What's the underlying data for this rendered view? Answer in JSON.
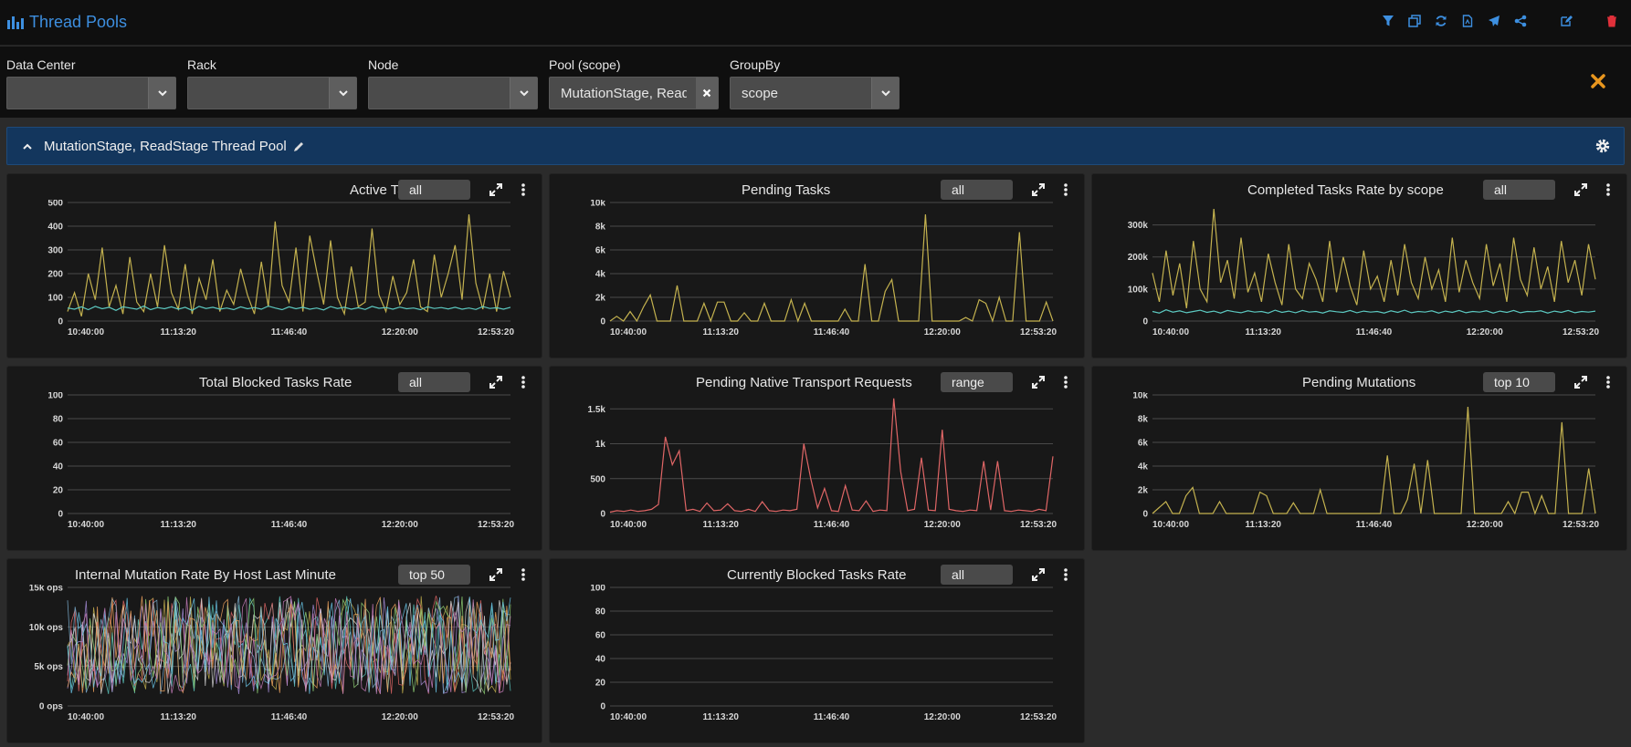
{
  "header": {
    "title": "Thread Pools"
  },
  "toolbar": {
    "icons": [
      "filter-icon",
      "copy-icon",
      "refresh-icon",
      "pdf-icon",
      "send-icon",
      "share-icon",
      "edit-icon",
      "delete-icon"
    ]
  },
  "filters": {
    "data_center": {
      "label": "Data Center",
      "value": ""
    },
    "rack": {
      "label": "Rack",
      "value": ""
    },
    "node": {
      "label": "Node",
      "value": ""
    },
    "pool": {
      "label": "Pool (scope)",
      "value": "MutationStage, ReadStage"
    },
    "groupby": {
      "label": "GroupBy",
      "value": "scope"
    }
  },
  "row": {
    "title": "MutationStage, ReadStage Thread Pool"
  },
  "colors": {
    "accent": "#3d8fe0",
    "yellow": "#c4b24f",
    "teal": "#5cc8c0",
    "red": "#e06666",
    "orange": "#e8961e",
    "row_bg": "#13365d"
  },
  "panels": [
    {
      "title": "Active Tasks",
      "pill": "all"
    },
    {
      "title": "Pending Tasks",
      "pill": "all"
    },
    {
      "title": "Completed Tasks Rate by scope",
      "pill": "all"
    },
    {
      "title": "Total Blocked Tasks Rate",
      "pill": "all"
    },
    {
      "title": "Pending Native Transport Requests",
      "pill": "range"
    },
    {
      "title": "Pending Mutations",
      "pill": "top 10"
    },
    {
      "title": "Internal Mutation Rate By Host Last Minute",
      "pill": "top 50"
    },
    {
      "title": "Currently Blocked Tasks Rate",
      "pill": "all"
    }
  ],
  "chart_data": [
    {
      "type": "line",
      "title": "Active Tasks",
      "x_ticks": [
        "10:40:00",
        "11:13:20",
        "11:46:40",
        "12:20:00",
        "12:53:20"
      ],
      "y_ticks": [
        "0",
        "100",
        "200",
        "300",
        "400",
        "500"
      ],
      "ylim": [
        0,
        500
      ],
      "series": [
        {
          "color": "#c4b24f",
          "values": [
            40,
            120,
            20,
            200,
            90,
            310,
            60,
            150,
            30,
            270,
            80,
            40,
            200,
            60,
            320,
            120,
            50,
            240,
            30,
            180,
            90,
            260,
            40,
            130,
            70,
            220,
            110,
            30,
            250,
            60,
            420,
            150,
            80,
            310,
            40,
            360,
            210,
            70,
            340,
            100,
            30,
            230,
            60,
            80,
            390,
            110,
            40,
            190,
            70,
            120,
            260,
            60,
            40,
            280,
            100,
            200,
            320,
            90,
            450,
            160,
            50,
            200,
            40,
            210,
            100
          ]
        },
        {
          "color": "#5cc8c0",
          "values": [
            55,
            50,
            60,
            48,
            62,
            52,
            58,
            45,
            60,
            55,
            50,
            63,
            48,
            57,
            52,
            60,
            50,
            58,
            45,
            62,
            53,
            58,
            50,
            55,
            48,
            60,
            52,
            57,
            50,
            63,
            55,
            48,
            60,
            52,
            58,
            50,
            55,
            47,
            61,
            53,
            58,
            50,
            56,
            49,
            62,
            54,
            57,
            50,
            59,
            52,
            55,
            48,
            60,
            53,
            57,
            51,
            58,
            50,
            55,
            49,
            61,
            53,
            56,
            50,
            58
          ]
        }
      ]
    },
    {
      "type": "line",
      "title": "Pending Tasks",
      "x_ticks": [
        "10:40:00",
        "11:13:20",
        "11:46:40",
        "12:20:00",
        "12:53:20"
      ],
      "y_ticks": [
        "0",
        "2k",
        "4k",
        "6k",
        "8k",
        "10k"
      ],
      "ylim": [
        0,
        10000
      ],
      "series": [
        {
          "color": "#c4b24f",
          "values": [
            0,
            400,
            0,
            800,
            0,
            1200,
            2200,
            0,
            0,
            0,
            3000,
            0,
            0,
            0,
            1500,
            0,
            1600,
            1600,
            0,
            0,
            700,
            0,
            0,
            1500,
            0,
            0,
            0,
            1800,
            0,
            1500,
            0,
            0,
            0,
            0,
            0,
            1000,
            0,
            0,
            4800,
            0,
            0,
            2500,
            3500,
            0,
            0,
            0,
            0,
            9000,
            0,
            0,
            0,
            0,
            0,
            300,
            0,
            1800,
            1500,
            0,
            2000,
            0,
            0,
            7500,
            0,
            0,
            0,
            1600,
            0
          ]
        }
      ]
    },
    {
      "type": "line",
      "title": "Completed Tasks Rate by scope",
      "x_ticks": [
        "10:40:00",
        "11:13:20",
        "11:46:40",
        "12:20:00",
        "12:53:20"
      ],
      "y_ticks": [
        "0",
        "100k",
        "200k",
        "300k"
      ],
      "ylim": [
        0,
        370000
      ],
      "series": [
        {
          "color": "#c4b24f",
          "values": [
            150000,
            60000,
            220000,
            80000,
            180000,
            40000,
            250000,
            100000,
            60000,
            350000,
            120000,
            190000,
            70000,
            260000,
            90000,
            150000,
            60000,
            210000,
            120000,
            50000,
            240000,
            100000,
            70000,
            180000,
            130000,
            60000,
            250000,
            90000,
            200000,
            110000,
            50000,
            220000,
            100000,
            140000,
            60000,
            190000,
            80000,
            240000,
            120000,
            70000,
            200000,
            100000,
            160000,
            60000,
            260000,
            90000,
            190000,
            120000,
            70000,
            240000,
            110000,
            180000,
            60000,
            260000,
            130000,
            80000,
            230000,
            100000,
            170000,
            60000,
            250000,
            120000,
            190000,
            80000,
            240000,
            130000
          ]
        },
        {
          "color": "#5cc8c0",
          "values": [
            30000,
            25000,
            35000,
            28000,
            32000,
            26000,
            30000,
            34000,
            27000,
            31000,
            25000,
            33000,
            29000,
            26000,
            32000,
            28000,
            30000,
            25000,
            34000,
            27000,
            31000,
            26000,
            33000,
            28000,
            30000,
            25000,
            32000,
            29000,
            27000,
            33000,
            26000,
            31000,
            28000,
            30000,
            25000,
            32000,
            27000,
            34000,
            26000,
            30000,
            28000,
            32000,
            25000,
            31000,
            27000,
            33000,
            26000,
            30000,
            28000,
            32000,
            25000,
            31000,
            27000,
            33000,
            26000,
            30000,
            29000,
            32000,
            25000,
            31000,
            27000,
            33000,
            26000,
            30000,
            28000,
            31000
          ]
        }
      ]
    },
    {
      "type": "line",
      "title": "Total Blocked Tasks Rate",
      "x_ticks": [
        "10:40:00",
        "11:13:20",
        "11:46:40",
        "12:20:00",
        "12:53:20"
      ],
      "y_ticks": [
        "0",
        "20",
        "40",
        "60",
        "80",
        "100"
      ],
      "ylim": [
        0,
        100
      ],
      "series": []
    },
    {
      "type": "line",
      "title": "Pending Native Transport Requests",
      "x_ticks": [
        "10:40:00",
        "11:13:20",
        "11:46:40",
        "12:20:00",
        "12:53:20"
      ],
      "y_ticks": [
        "0",
        "500",
        "1k",
        "1.5k"
      ],
      "ylim": [
        0,
        1700
      ],
      "series": [
        {
          "color": "#e06666",
          "values": [
            20,
            40,
            30,
            50,
            30,
            40,
            60,
            130,
            1100,
            700,
            900,
            40,
            60,
            30,
            150,
            40,
            50,
            140,
            40,
            30,
            60,
            30,
            170,
            40,
            30,
            50,
            40,
            60,
            1000,
            500,
            80,
            360,
            40,
            30,
            400,
            50,
            40,
            180,
            30,
            50,
            40,
            1650,
            600,
            40,
            60,
            800,
            50,
            40,
            1200,
            60,
            40,
            30,
            50,
            40,
            750,
            50,
            750,
            40,
            30,
            50,
            40,
            30,
            60,
            40,
            820
          ]
        }
      ]
    },
    {
      "type": "line",
      "title": "Pending Mutations",
      "x_ticks": [
        "10:40:00",
        "11:13:20",
        "11:46:40",
        "12:20:00",
        "12:53:20"
      ],
      "y_ticks": [
        "0",
        "2k",
        "4k",
        "6k",
        "8k",
        "10k"
      ],
      "ylim": [
        0,
        10000
      ],
      "series": [
        {
          "color": "#c4b24f",
          "values": [
            0,
            500,
            1000,
            0,
            0,
            1500,
            2200,
            0,
            0,
            0,
            1000,
            0,
            0,
            0,
            0,
            0,
            1800,
            1500,
            0,
            0,
            0,
            900,
            0,
            0,
            0,
            2000,
            0,
            0,
            0,
            0,
            0,
            0,
            0,
            0,
            0,
            4900,
            0,
            0,
            1200,
            4200,
            0,
            4500,
            0,
            0,
            0,
            0,
            0,
            9000,
            0,
            0,
            0,
            0,
            0,
            1000,
            0,
            1800,
            1800,
            0,
            1500,
            0,
            0,
            7700,
            0,
            0,
            0,
            3800,
            0
          ]
        }
      ]
    },
    {
      "type": "line",
      "title": "Internal Mutation Rate By Host Last Minute",
      "x_ticks": [
        "10:40:00",
        "11:13:20",
        "11:46:40",
        "12:20:00",
        "12:53:20"
      ],
      "y_ticks": [
        "0 ops",
        "5k ops",
        "10k ops",
        "15k ops"
      ],
      "ylim": [
        0,
        15000
      ],
      "series_summary": "50 hosts oscillating between roughly 0 and 14k ops",
      "series": []
    },
    {
      "type": "line",
      "title": "Currently Blocked Tasks Rate",
      "x_ticks": [
        "10:40:00",
        "11:13:20",
        "11:46:40",
        "12:20:00",
        "12:53:20"
      ],
      "y_ticks": [
        "0",
        "20",
        "40",
        "60",
        "80",
        "100"
      ],
      "ylim": [
        0,
        100
      ],
      "series": []
    }
  ]
}
